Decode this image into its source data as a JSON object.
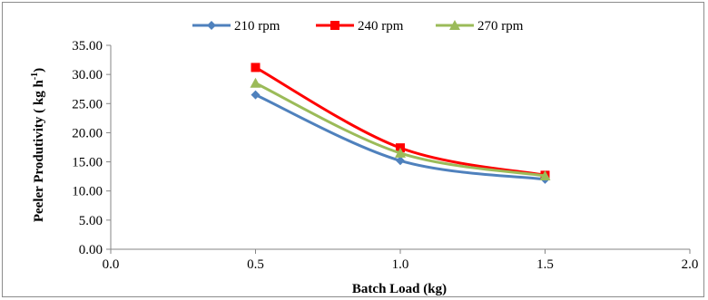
{
  "chart_data": {
    "type": "line",
    "title": "",
    "xlabel": "Batch Load (kg)",
    "ylabel": "Peeler Produtivity  ( kg h",
    "ylabel_sup": "-1",
    "ylabel_close": ")",
    "xlim": [
      0.0,
      2.0
    ],
    "ylim": [
      0.0,
      35.0
    ],
    "x_ticks": [
      "0.0",
      "0.5",
      "1.0",
      "1.5",
      "2.0"
    ],
    "y_ticks": [
      "0.00",
      "5.00",
      "10.00",
      "15.00",
      "20.00",
      "25.00",
      "30.00",
      "35.00"
    ],
    "grid": false,
    "legend_position": "top",
    "x": [
      0.5,
      1.0,
      1.5
    ],
    "series": [
      {
        "name": "210 rpm",
        "values": [
          26.5,
          15.2,
          12.0
        ],
        "color": "#4f81bd",
        "marker": "diamond"
      },
      {
        "name": "240 rpm",
        "values": [
          31.2,
          17.4,
          12.7
        ],
        "color": "#ff0000",
        "marker": "square"
      },
      {
        "name": "270 rpm",
        "values": [
          28.5,
          16.5,
          12.6
        ],
        "color": "#9bbb59",
        "marker": "triangle"
      }
    ]
  }
}
